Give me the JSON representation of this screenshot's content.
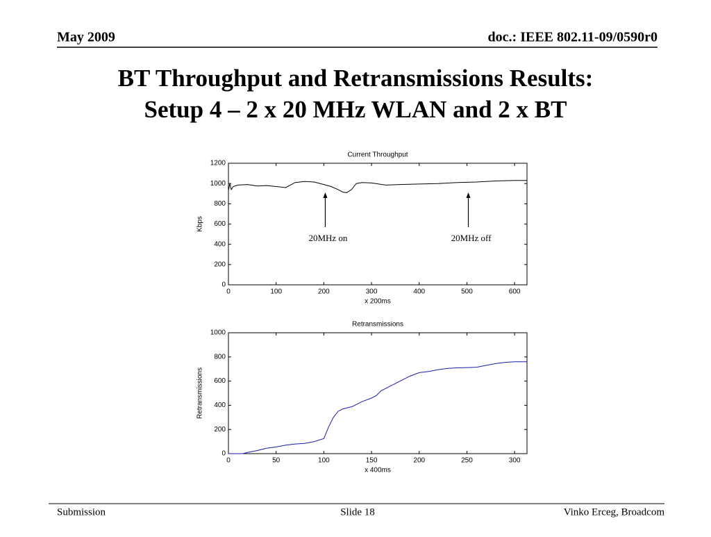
{
  "header": {
    "date": "May 2009",
    "doc": "doc.: IEEE 802.11-09/0590r0"
  },
  "title": [
    "BT Throughput and Retransmissions Results:",
    "Setup 4 – 2 x 20 MHz WLAN and 2 x BT"
  ],
  "footer": {
    "left": "Submission",
    "center": "Slide 18",
    "right": "Vinko Erceg, Broadcom"
  },
  "chart_data": [
    {
      "type": "line",
      "title": "Current Throughput",
      "y_label": "Kbps",
      "x_label": "x 200ms",
      "color": "#000000",
      "x": [
        0,
        3,
        6,
        10,
        20,
        40,
        60,
        80,
        100,
        120,
        140,
        160,
        180,
        200,
        215,
        230,
        240,
        248,
        258,
        268,
        280,
        300,
        330,
        360,
        400,
        440,
        480,
        520,
        560,
        600,
        626
      ],
      "values": [
        930,
        1000,
        940,
        970,
        985,
        990,
        975,
        980,
        970,
        960,
        1010,
        1020,
        1015,
        990,
        970,
        940,
        915,
        910,
        940,
        1000,
        1010,
        1005,
        985,
        990,
        995,
        1000,
        1010,
        1015,
        1025,
        1030,
        1030
      ],
      "xlim": [
        0,
        626
      ],
      "ylim": [
        0,
        1200
      ],
      "xticks": [
        0,
        100,
        200,
        300,
        400,
        500,
        600
      ],
      "yticks": [
        0,
        200,
        400,
        600,
        800,
        1000,
        1200
      ],
      "annotations": [
        {
          "text": "20MHz on",
          "x": 203
        },
        {
          "text": "20MHz off",
          "x": 503
        }
      ]
    },
    {
      "type": "line",
      "title": "Retransmissions",
      "y_label": "Retransmissions",
      "x_label": "x 400ms",
      "color": "#1a1aa8",
      "x": [
        0,
        15,
        20,
        30,
        40,
        50,
        60,
        70,
        80,
        90,
        100,
        105,
        110,
        115,
        120,
        130,
        140,
        150,
        155,
        160,
        170,
        180,
        190,
        200,
        210,
        220,
        230,
        240,
        250,
        260,
        270,
        280,
        290,
        300,
        313
      ],
      "values": [
        0,
        0,
        10,
        25,
        45,
        55,
        70,
        80,
        85,
        100,
        125,
        220,
        300,
        350,
        370,
        390,
        430,
        460,
        480,
        520,
        560,
        600,
        640,
        670,
        680,
        695,
        705,
        710,
        712,
        715,
        730,
        745,
        755,
        760,
        760
      ],
      "xlim": [
        0,
        313
      ],
      "ylim": [
        0,
        1000
      ],
      "xticks": [
        0,
        50,
        100,
        150,
        200,
        250,
        300
      ],
      "yticks": [
        0,
        200,
        400,
        600,
        800,
        1000
      ]
    }
  ]
}
